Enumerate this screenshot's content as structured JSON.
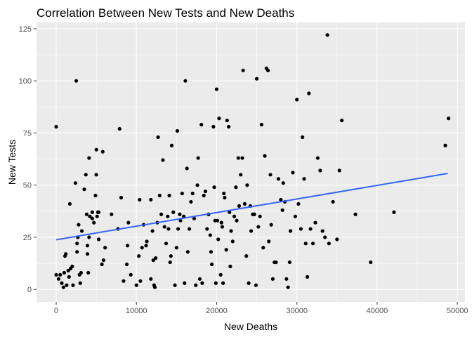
{
  "chart_data": {
    "type": "scatter",
    "title": "Correlation Between New Tests and New Deaths",
    "xlabel": "New Deaths",
    "ylabel": "New Tests",
    "xlim": [
      -2450,
      50950
    ],
    "ylim": [
      -6,
      128
    ],
    "x_ticks": [
      0,
      10000,
      20000,
      30000,
      40000,
      50000
    ],
    "y_ticks": [
      0,
      25,
      50,
      75,
      100,
      125
    ],
    "grid": true,
    "panel_color": "#ebebeb",
    "point_color": "#000000",
    "trend_color": "#3366ff",
    "trend_line": {
      "x": [
        0,
        48800
      ],
      "y": [
        23.8,
        55.6
      ]
    },
    "points": [
      [
        0,
        78
      ],
      [
        0,
        7
      ],
      [
        300,
        5
      ],
      [
        500,
        7
      ],
      [
        700,
        3
      ],
      [
        900,
        1
      ],
      [
        1000,
        8
      ],
      [
        1100,
        16
      ],
      [
        1200,
        17
      ],
      [
        1300,
        2
      ],
      [
        1500,
        9
      ],
      [
        1600,
        6
      ],
      [
        1700,
        41
      ],
      [
        1800,
        10
      ],
      [
        2000,
        11
      ],
      [
        2100,
        2
      ],
      [
        2400,
        51
      ],
      [
        2500,
        100
      ],
      [
        2600,
        22
      ],
      [
        2600,
        18
      ],
      [
        2700,
        25
      ],
      [
        2800,
        31
      ],
      [
        2900,
        7
      ],
      [
        3000,
        3
      ],
      [
        3100,
        8
      ],
      [
        3200,
        28
      ],
      [
        3500,
        48
      ],
      [
        3700,
        55
      ],
      [
        3800,
        36
      ],
      [
        3900,
        21
      ],
      [
        3900,
        17
      ],
      [
        4000,
        8
      ],
      [
        4100,
        25
      ],
      [
        4100,
        63
      ],
      [
        4200,
        35
      ],
      [
        4500,
        37
      ],
      [
        4500,
        34
      ],
      [
        4700,
        32
      ],
      [
        4900,
        45
      ],
      [
        5000,
        55
      ],
      [
        5000,
        67
      ],
      [
        5100,
        35
      ],
      [
        5200,
        37
      ],
      [
        5300,
        37
      ],
      [
        5300,
        24
      ],
      [
        5700,
        12
      ],
      [
        5800,
        66
      ],
      [
        5900,
        14
      ],
      [
        6100,
        20
      ],
      [
        6900,
        36
      ],
      [
        7700,
        29
      ],
      [
        7900,
        77
      ],
      [
        8100,
        44
      ],
      [
        8400,
        4
      ],
      [
        8800,
        12
      ],
      [
        8900,
        21
      ],
      [
        9000,
        32
      ],
      [
        9300,
        7
      ],
      [
        10000,
        2
      ],
      [
        10300,
        16
      ],
      [
        10400,
        43
      ],
      [
        10500,
        4
      ],
      [
        10700,
        20
      ],
      [
        10900,
        31
      ],
      [
        11200,
        21
      ],
      [
        11300,
        23
      ],
      [
        11800,
        43
      ],
      [
        11800,
        5
      ],
      [
        12000,
        28
      ],
      [
        12100,
        14
      ],
      [
        12200,
        2
      ],
      [
        12300,
        1
      ],
      [
        12400,
        15
      ],
      [
        12600,
        32
      ],
      [
        12700,
        73
      ],
      [
        12900,
        45
      ],
      [
        13100,
        36
      ],
      [
        13300,
        62
      ],
      [
        13500,
        30
      ],
      [
        13700,
        22
      ],
      [
        13900,
        35
      ],
      [
        14000,
        29
      ],
      [
        14100,
        45
      ],
      [
        14200,
        13
      ],
      [
        14300,
        16
      ],
      [
        14400,
        69
      ],
      [
        14600,
        37
      ],
      [
        14800,
        2
      ],
      [
        15000,
        20
      ],
      [
        15100,
        76
      ],
      [
        15200,
        29
      ],
      [
        15400,
        36
      ],
      [
        15500,
        33
      ],
      [
        15700,
        46
      ],
      [
        15900,
        35
      ],
      [
        16000,
        3
      ],
      [
        16100,
        100
      ],
      [
        16300,
        58
      ],
      [
        16400,
        18
      ],
      [
        16600,
        29
      ],
      [
        16800,
        42
      ],
      [
        17000,
        46
      ],
      [
        17200,
        34
      ],
      [
        17400,
        2
      ],
      [
        17600,
        50
      ],
      [
        17700,
        63
      ],
      [
        17900,
        5
      ],
      [
        18100,
        79
      ],
      [
        18200,
        3
      ],
      [
        18400,
        45
      ],
      [
        18600,
        47
      ],
      [
        18800,
        29
      ],
      [
        19000,
        36
      ],
      [
        19200,
        26
      ],
      [
        19300,
        18
      ],
      [
        19400,
        12
      ],
      [
        19600,
        78
      ],
      [
        19700,
        49
      ],
      [
        19800,
        33
      ],
      [
        19900,
        3
      ],
      [
        20000,
        96
      ],
      [
        20100,
        33
      ],
      [
        20200,
        24
      ],
      [
        20300,
        82
      ],
      [
        20500,
        7
      ],
      [
        20600,
        32
      ],
      [
        20700,
        30
      ],
      [
        20800,
        3
      ],
      [
        20900,
        46
      ],
      [
        21000,
        44
      ],
      [
        21200,
        19
      ],
      [
        21300,
        81
      ],
      [
        21500,
        78
      ],
      [
        21600,
        37
      ],
      [
        21700,
        11
      ],
      [
        21800,
        28
      ],
      [
        22000,
        23
      ],
      [
        22200,
        35
      ],
      [
        22400,
        49
      ],
      [
        22500,
        33
      ],
      [
        22700,
        63
      ],
      [
        22800,
        40
      ],
      [
        23000,
        55
      ],
      [
        23200,
        63
      ],
      [
        23300,
        105
      ],
      [
        23500,
        41
      ],
      [
        23700,
        16
      ],
      [
        23800,
        50
      ],
      [
        24000,
        3
      ],
      [
        24200,
        40
      ],
      [
        24300,
        28
      ],
      [
        24500,
        36
      ],
      [
        24700,
        36
      ],
      [
        24900,
        2
      ],
      [
        25000,
        101
      ],
      [
        25200,
        30
      ],
      [
        25400,
        35
      ],
      [
        25600,
        79
      ],
      [
        25800,
        20
      ],
      [
        26000,
        64
      ],
      [
        26200,
        106
      ],
      [
        26400,
        105
      ],
      [
        26500,
        23
      ],
      [
        26700,
        55
      ],
      [
        26800,
        31
      ],
      [
        27000,
        5
      ],
      [
        27200,
        13
      ],
      [
        27400,
        13
      ],
      [
        27700,
        53
      ],
      [
        28000,
        43
      ],
      [
        28200,
        38
      ],
      [
        28300,
        51
      ],
      [
        28500,
        42
      ],
      [
        28700,
        5
      ],
      [
        28900,
        1
      ],
      [
        29100,
        13
      ],
      [
        29200,
        28
      ],
      [
        29500,
        56
      ],
      [
        29800,
        35
      ],
      [
        30000,
        91
      ],
      [
        30200,
        41
      ],
      [
        30500,
        29
      ],
      [
        30700,
        73
      ],
      [
        30900,
        53
      ],
      [
        31100,
        22
      ],
      [
        31300,
        6
      ],
      [
        31500,
        94
      ],
      [
        31700,
        29
      ],
      [
        32000,
        22
      ],
      [
        32300,
        32
      ],
      [
        32600,
        63
      ],
      [
        32900,
        57
      ],
      [
        33200,
        28
      ],
      [
        33500,
        25
      ],
      [
        33800,
        122
      ],
      [
        34000,
        22
      ],
      [
        34500,
        42
      ],
      [
        35000,
        24
      ],
      [
        35300,
        57
      ],
      [
        35600,
        81
      ],
      [
        37300,
        36
      ],
      [
        39200,
        13
      ],
      [
        42100,
        37
      ],
      [
        48500,
        69
      ],
      [
        48900,
        82
      ]
    ]
  }
}
